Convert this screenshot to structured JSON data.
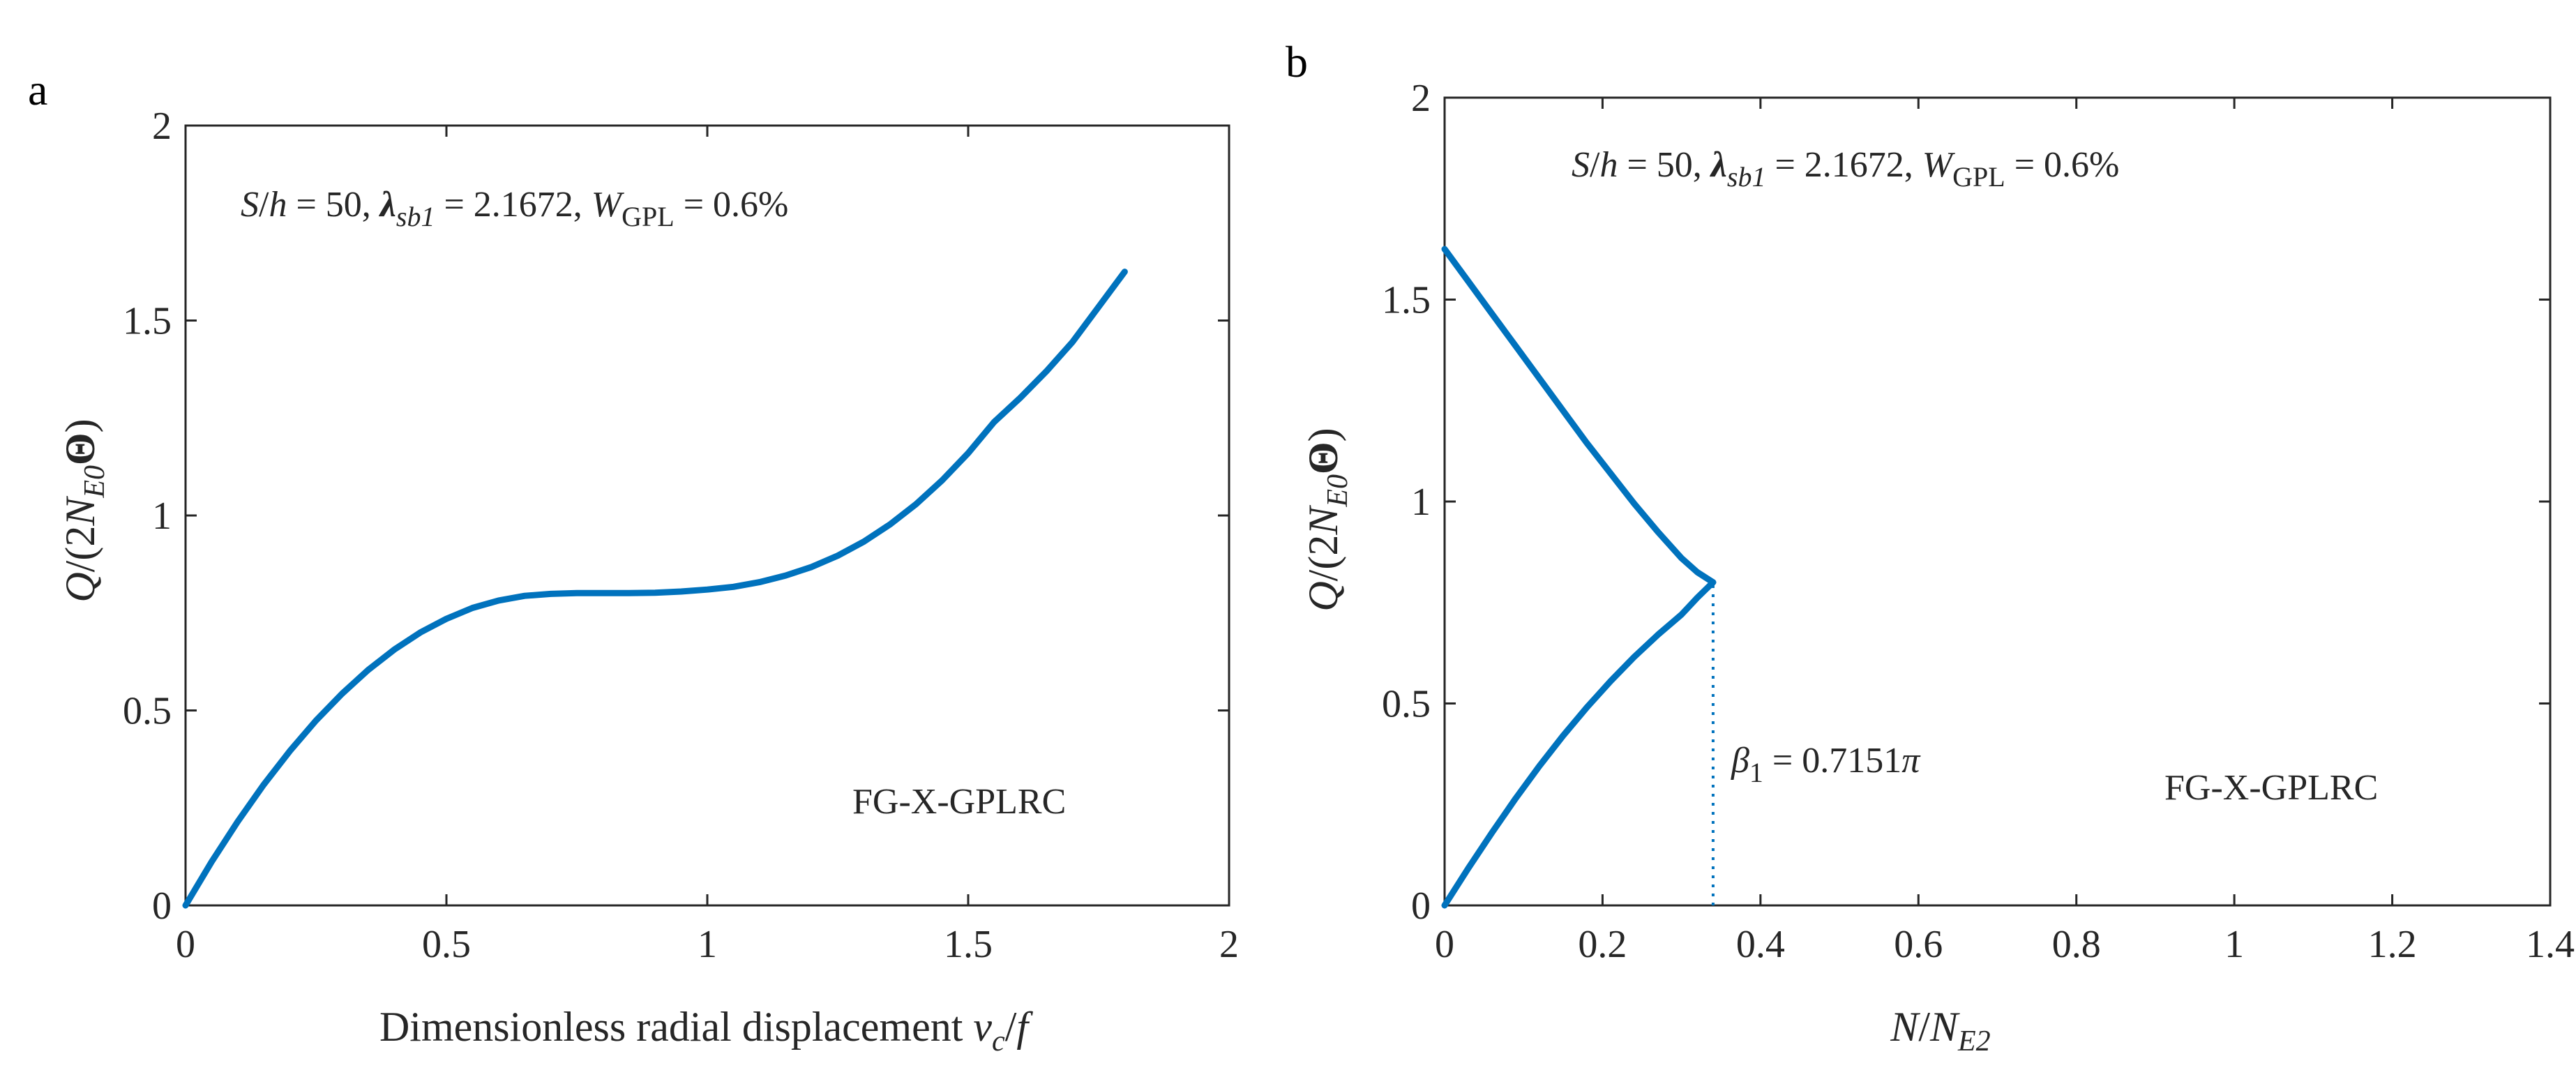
{
  "chart_data": [
    {
      "panel": "a",
      "type": "line",
      "title": "",
      "xlabel": {
        "text": "Dimensionless radial displacement ",
        "var": "v",
        "sub": "c",
        "tail": "/",
        "var2": "f"
      },
      "ylabel": {
        "q": "Q",
        "mid": "/(2",
        "n": "N",
        "sub": "E0",
        "theta": "Θ",
        "close": ")"
      },
      "xlim": [
        0,
        2
      ],
      "ylim": [
        0,
        2
      ],
      "xticks": [
        0,
        0.5,
        1,
        1.5,
        2
      ],
      "xtick_labels": [
        "0",
        "0.5",
        "1",
        "1.5",
        "2"
      ],
      "yticks": [
        0,
        0.5,
        1,
        1.5,
        2
      ],
      "ytick_labels": [
        "0",
        "0.5",
        "1",
        "1.5",
        "2"
      ],
      "grid": false,
      "annotation_params": {
        "s": "S",
        "slash": "/",
        "h": "h",
        "eq50": " = 50, ",
        "lambda": "λ",
        "lambda_sub": "sb1",
        "eq_lambda": " = 2.1672, ",
        "w": "W",
        "w_sub": "GPL",
        "eq_w": " = 0.6%"
      },
      "annotation_material": "FG-X-GPLRC",
      "series": [
        {
          "name": "Q/(2N_E0Θ)",
          "color": "#0072BD",
          "x": [
            0,
            0.05,
            0.1,
            0.15,
            0.2,
            0.25,
            0.3,
            0.35,
            0.4,
            0.45,
            0.5,
            0.55,
            0.6,
            0.65,
            0.7,
            0.75,
            0.8,
            0.85,
            0.9,
            0.95,
            1.0,
            1.05,
            1.1,
            1.15,
            1.2,
            1.25,
            1.3,
            1.35,
            1.4,
            1.45,
            1.5,
            1.55,
            1.6,
            1.65,
            1.7,
            1.75,
            1.8
          ],
          "y": [
            0,
            0.112,
            0.215,
            0.31,
            0.396,
            0.474,
            0.543,
            0.604,
            0.656,
            0.7,
            0.735,
            0.763,
            0.782,
            0.794,
            0.799,
            0.801,
            0.801,
            0.801,
            0.802,
            0.805,
            0.81,
            0.817,
            0.829,
            0.846,
            0.868,
            0.897,
            0.933,
            0.977,
            1.029,
            1.09,
            1.16,
            1.24,
            1.302,
            1.37,
            1.445,
            1.535,
            1.625
          ]
        }
      ]
    },
    {
      "panel": "b",
      "type": "line",
      "title": "",
      "xlabel": {
        "n": "N",
        "slash": "/",
        "n2": "N",
        "sub": "E2"
      },
      "ylabel": {
        "q": "Q",
        "mid": "/(2",
        "n": "N",
        "sub": "E0",
        "theta": "Θ",
        "close": ")"
      },
      "xlim": [
        0,
        1.4
      ],
      "ylim": [
        0,
        2
      ],
      "xticks": [
        0,
        0.2,
        0.4,
        0.6,
        0.8,
        1,
        1.2,
        1.4
      ],
      "xtick_labels": [
        "0",
        "0.2",
        "0.4",
        "0.6",
        "0.8",
        "1",
        "1.2",
        "1.4"
      ],
      "yticks": [
        0,
        0.5,
        1,
        1.5,
        2
      ],
      "ytick_labels": [
        "0",
        "0.5",
        "1",
        "1.5",
        "2"
      ],
      "grid": false,
      "annotation_params": {
        "s": "S",
        "slash": "/",
        "h": "h",
        "eq50": " = 50, ",
        "lambda": "λ",
        "lambda_sub": "sb1",
        "eq_lambda": " = 2.1672, ",
        "w": "W",
        "w_sub": "GPL",
        "eq_w": " = 0.6%"
      },
      "annotation_beta": {
        "beta": "β",
        "sub": "1",
        "eq": " = 0.7151",
        "pi": "π"
      },
      "annotation_material": "FG-X-GPLRC",
      "vline_x": 0.34,
      "vline_y": [
        0,
        0.8
      ],
      "series": [
        {
          "name": "upper branch",
          "color": "#0072BD",
          "x": [
            0,
            0.03,
            0.06,
            0.09,
            0.12,
            0.15,
            0.18,
            0.21,
            0.24,
            0.27,
            0.3,
            0.32,
            0.34
          ],
          "y": [
            1.625,
            1.545,
            1.465,
            1.385,
            1.305,
            1.225,
            1.145,
            1.07,
            0.995,
            0.925,
            0.86,
            0.825,
            0.8
          ]
        },
        {
          "name": "lower branch",
          "color": "#0072BD",
          "x": [
            0,
            0.03,
            0.06,
            0.09,
            0.12,
            0.15,
            0.18,
            0.21,
            0.24,
            0.27,
            0.3,
            0.32,
            0.34
          ],
          "y": [
            0,
            0.092,
            0.18,
            0.265,
            0.345,
            0.42,
            0.49,
            0.555,
            0.615,
            0.67,
            0.72,
            0.762,
            0.8
          ]
        }
      ]
    }
  ]
}
